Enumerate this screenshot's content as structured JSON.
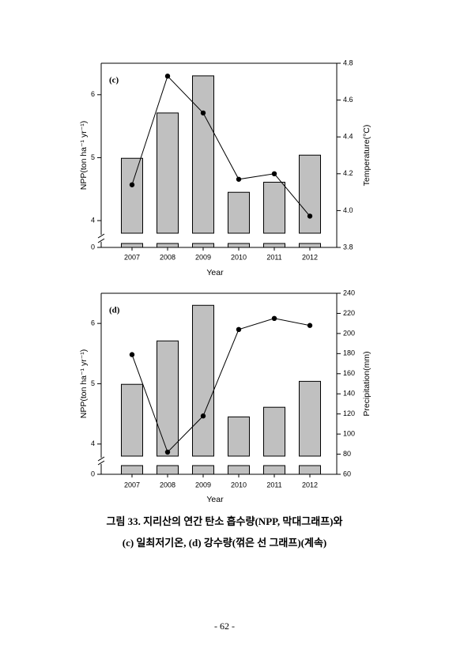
{
  "chart_data": [
    {
      "type": "bar",
      "panel_label": "(c)",
      "x_label": "Year",
      "y_label": "NPP(ton ha⁻¹ yr⁻¹)",
      "y2_label": "Temperature(°C)",
      "categories": [
        "2007",
        "2008",
        "2009",
        "2010",
        "2011",
        "2012"
      ],
      "ylim": [
        3.8,
        6.5
      ],
      "yticks": [
        0,
        4,
        5,
        6
      ],
      "axis_break": true,
      "y2lim": [
        3.8,
        4.8
      ],
      "y2ticks": [
        4.8,
        4.6,
        4.4,
        4.2,
        {
          "value": 4,
          "label": "4.0"
        },
        3.8
      ],
      "series": [
        {
          "type": "bar",
          "color": "#c0c0c0",
          "values": [
            4.99,
            5.71,
            6.3,
            4.45,
            4.61,
            5.04
          ]
        },
        {
          "type": "line",
          "axis": "y2",
          "color": "#000000",
          "values": [
            4.14,
            4.73,
            4.53,
            4.17,
            4.2,
            3.97
          ]
        }
      ]
    },
    {
      "type": "bar",
      "panel_label": "(d)",
      "x_label": "Year",
      "y_label": "NPP(ton ha⁻¹ yr⁻¹)",
      "y2_label": "Precipitation(mm)",
      "categories": [
        "2007",
        "2008",
        "2009",
        "2010",
        "2011",
        "2012"
      ],
      "ylim": [
        3.8,
        6.5
      ],
      "yticks": [
        0,
        4,
        5,
        6
      ],
      "axis_break": true,
      "y2lim": [
        60,
        240
      ],
      "y2ticks": [
        240,
        220,
        200,
        180,
        160,
        140,
        120,
        100,
        80,
        60
      ],
      "series": [
        {
          "type": "bar",
          "color": "#c0c0c0",
          "values": [
            4.99,
            5.71,
            6.3,
            4.45,
            4.61,
            5.04
          ]
        },
        {
          "type": "line",
          "axis": "y2",
          "color": "#000000",
          "values": [
            179,
            82,
            118,
            204,
            215,
            208
          ]
        }
      ]
    }
  ],
  "caption": [
    "그림 33. 지리산의 연간 탄소 흡수량(NPP, 막대그래프)와",
    "(c) 일최저기온, (d) 강수량(꺾은 선 그래프)(계속)"
  ],
  "page_number": "- 62 -"
}
